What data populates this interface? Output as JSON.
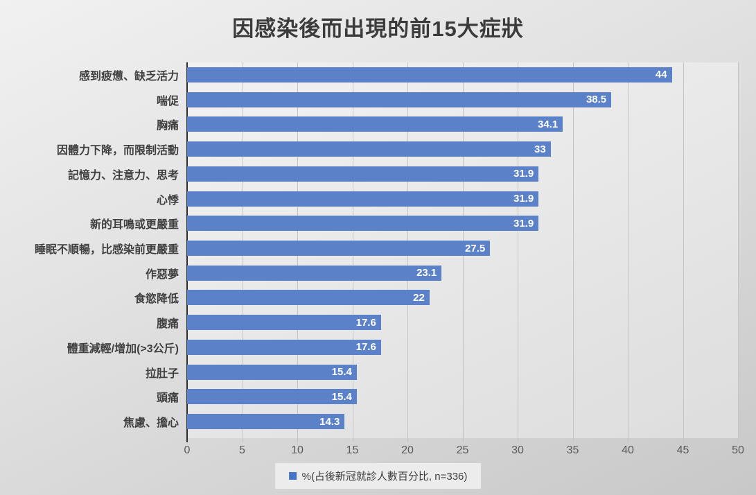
{
  "title": "因感染後而出現的前15大症狀",
  "chart_data": {
    "type": "bar",
    "orientation": "horizontal",
    "title": "因感染後而出現的前15大症狀",
    "categories": [
      "感到疲憊、缺乏活力",
      "喘促",
      "胸痛",
      "因體力下降，而限制活動",
      "記憶力、注意力、思考",
      "心悸",
      "新的耳鳴或更嚴重",
      "睡眠不順暢，比感染前更嚴重",
      "作惡夢",
      "食慾降低",
      "腹痛",
      "體重減輕/增加(>3公斤)",
      "拉肚子",
      "頭痛",
      "焦慮、擔心"
    ],
    "values": [
      44,
      38.5,
      34.1,
      33,
      31.9,
      31.9,
      31.9,
      27.5,
      23.1,
      22,
      17.6,
      17.6,
      15.4,
      15.4,
      14.3
    ],
    "data_labels": [
      "44",
      "38.5",
      "34.1",
      "33",
      "31.9",
      "31.9",
      "31.9",
      "27.5",
      "23.1",
      "22",
      "17.6",
      "17.6",
      "15.4",
      "15.4",
      "14.3"
    ],
    "xlabel": "",
    "ylabel": "",
    "xlim": [
      0,
      50
    ],
    "x_ticks": [
      0,
      5,
      10,
      15,
      20,
      25,
      30,
      35,
      40,
      45,
      50
    ],
    "grid": true,
    "legend": {
      "position": "bottom",
      "entries": [
        "%(占後新冠就診人數百分比, n=336)"
      ]
    }
  },
  "colors": {
    "bar": "#5B81C8",
    "legend_marker": "#4476C8",
    "gridline": "#C4C4C4",
    "axis_line": "#2B2B2B",
    "value_label": "#FFFFFF"
  }
}
